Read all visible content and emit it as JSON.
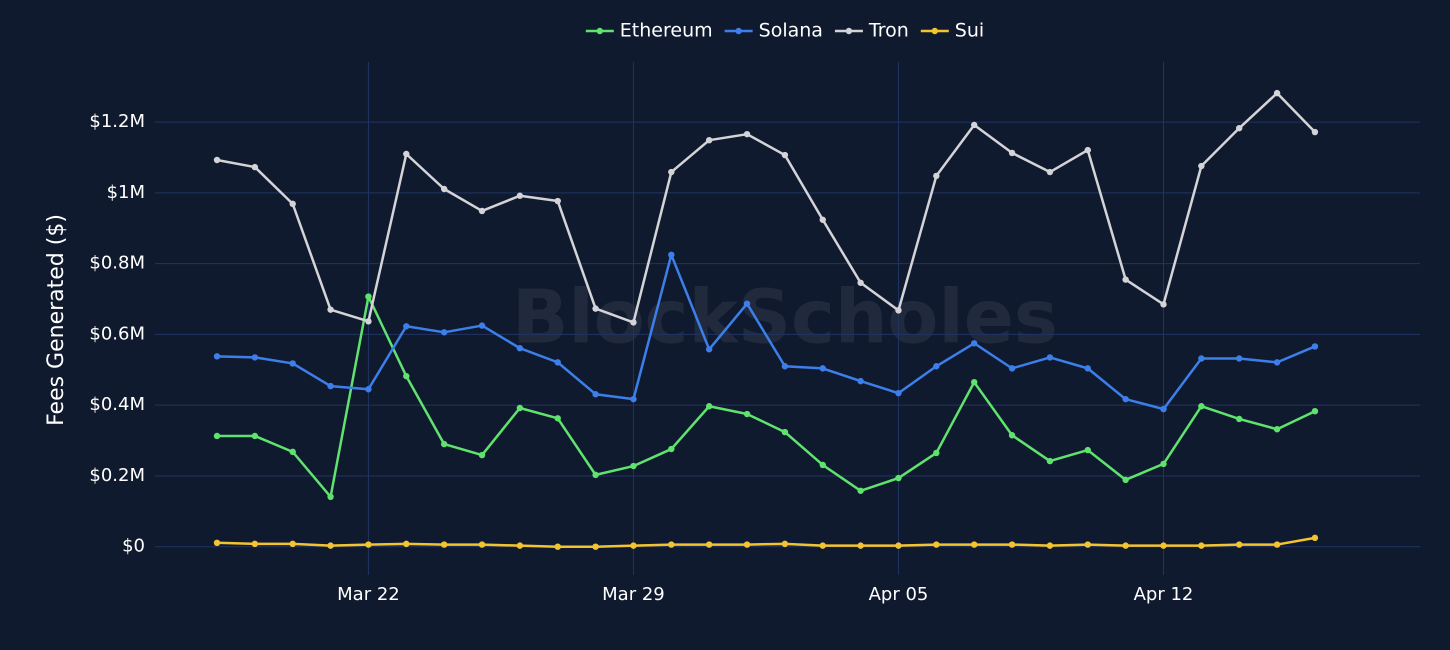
{
  "chart_data": {
    "type": "line",
    "watermark": "BlockScholes",
    "y_label": "Fees Generated ($)",
    "x": [
      "Mar 18",
      "Mar 19",
      "Mar 20",
      "Mar 21",
      "Mar 22",
      "Mar 23",
      "Mar 24",
      "Mar 25",
      "Mar 26",
      "Mar 27",
      "Mar 28",
      "Mar 29",
      "Mar 30",
      "Mar 31",
      "Apr 01",
      "Apr 02",
      "Apr 03",
      "Apr 04",
      "Apr 05",
      "Apr 06",
      "Apr 07",
      "Apr 08",
      "Apr 09",
      "Apr 10",
      "Apr 11",
      "Apr 12",
      "Apr 13",
      "Apr 14",
      "Apr 15",
      "Apr 16"
    ],
    "xticks": [
      "Mar 22",
      "Mar 29",
      "Apr 05",
      "Apr 12"
    ],
    "ylim": [
      -80000,
      1370000
    ],
    "yticks": [
      {
        "value": 0,
        "label": "$0"
      },
      {
        "value": 200000,
        "label": "$0.2M"
      },
      {
        "value": 400000,
        "label": "$0.4M"
      },
      {
        "value": 600000,
        "label": "$0.6M"
      },
      {
        "value": 800000,
        "label": "$0.8M"
      },
      {
        "value": 1000000,
        "label": "$1M"
      },
      {
        "value": 1200000,
        "label": "$1.2M"
      }
    ],
    "grid": true,
    "legend": "top",
    "series": [
      {
        "name": "Ethereum",
        "color": "#5fe36e",
        "values": [
          313000,
          313000,
          268000,
          141000,
          707000,
          482000,
          290000,
          259000,
          392000,
          363000,
          203000,
          228000,
          276000,
          397000,
          375000,
          324000,
          231000,
          158000,
          194000,
          265000,
          465000,
          315000,
          242000,
          273000,
          189000,
          234000,
          397000,
          361000,
          332000,
          383000
        ]
      },
      {
        "name": "Solana",
        "color": "#3d7fea",
        "values": [
          538000,
          535000,
          518000,
          454000,
          445000,
          623000,
          606000,
          625000,
          561000,
          521000,
          431000,
          417000,
          825000,
          558000,
          687000,
          510000,
          504000,
          468000,
          434000,
          510000,
          575000,
          504000,
          535000,
          504000,
          417000,
          389000,
          532000,
          532000,
          521000,
          566000
        ]
      },
      {
        "name": "Tron",
        "color": "#d4d4d8",
        "values": [
          1093000,
          1073000,
          969000,
          670000,
          637000,
          1110000,
          1011000,
          949000,
          992000,
          977000,
          673000,
          634000,
          1059000,
          1149000,
          1166000,
          1107000,
          924000,
          746000,
          668000,
          1048000,
          1192000,
          1113000,
          1059000,
          1121000,
          755000,
          685000,
          1076000,
          1183000,
          1282000,
          1172000
        ]
      },
      {
        "name": "Sui",
        "color": "#f4c430",
        "values": [
          11000,
          8000,
          8000,
          3000,
          6000,
          8000,
          6000,
          6000,
          3000,
          0,
          0,
          3000,
          6000,
          6000,
          6000,
          8000,
          3000,
          3000,
          3000,
          6000,
          6000,
          6000,
          3000,
          6000,
          3000,
          3000,
          3000,
          6000,
          6000,
          25000
        ]
      }
    ]
  }
}
